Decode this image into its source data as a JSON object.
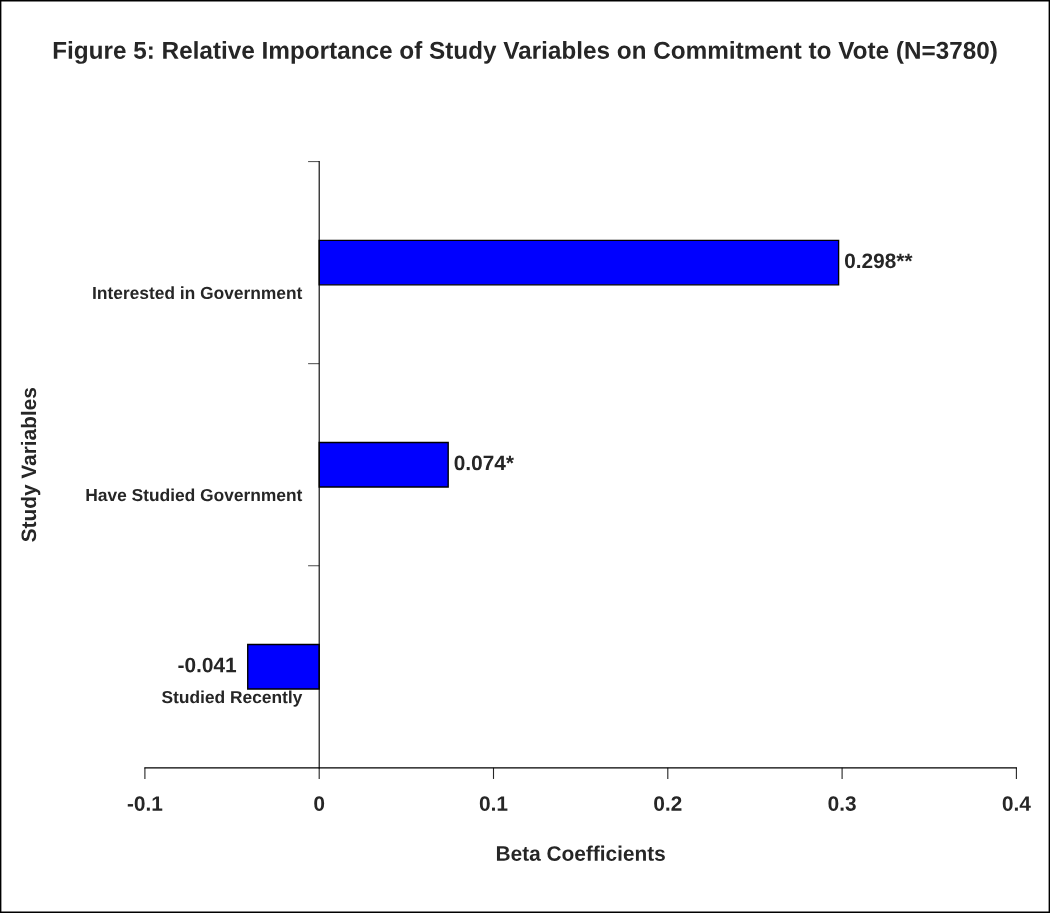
{
  "chart_data": {
    "type": "bar",
    "orientation": "horizontal",
    "title": "Figure 5: Relative Importance of Study Variables on Commitment to Vote (N=3780)",
    "xlabel": "Beta Coefficients",
    "ylabel": "Study Variables",
    "categories": [
      "Interested in Government",
      "Have Studied Government",
      "Studied Recently"
    ],
    "values": [
      0.298,
      0.074,
      -0.041
    ],
    "value_labels": [
      "0.298**",
      "0.074*",
      "-0.041"
    ],
    "color": "#0000ff",
    "xlim": [
      -0.1,
      0.4
    ],
    "xticks": [
      -0.1,
      0,
      0.1,
      0.2,
      0.3,
      0.4
    ],
    "grid": false,
    "legend": false
  }
}
